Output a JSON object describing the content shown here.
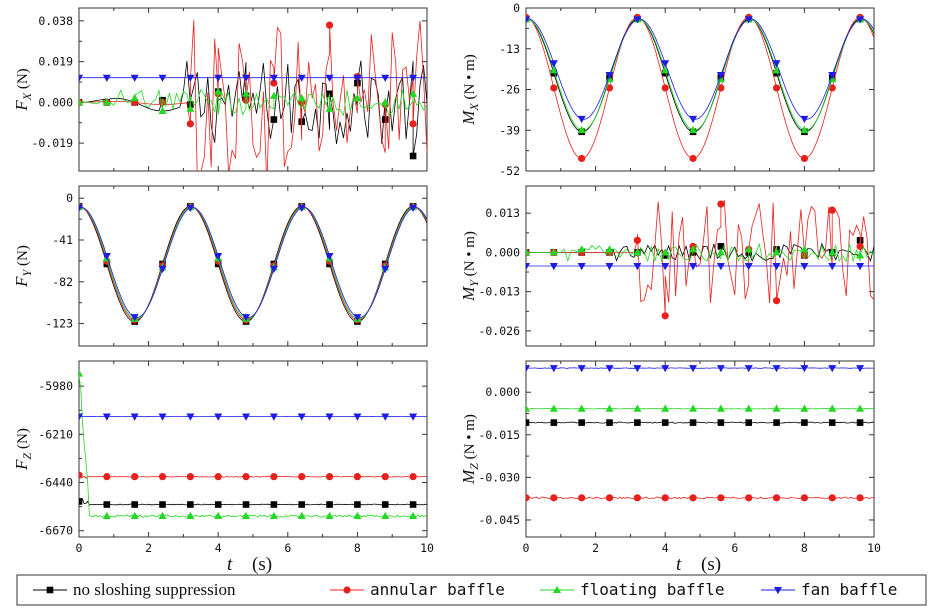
{
  "legend": [
    {
      "label": "no sloshing suppression",
      "color": "#000000",
      "marker": "square"
    },
    {
      "label": "annular baffle",
      "color": "#e8201c",
      "marker": "circle"
    },
    {
      "label": "floating baffle",
      "color": "#22d822",
      "marker": "triangle-up"
    },
    {
      "label": "fan baffle",
      "color": "#1c1ce6",
      "marker": "triangle-down"
    }
  ],
  "xaxis": {
    "label_main": "t",
    "label_unit": "(s)",
    "ticks": [
      "0",
      "2",
      "4",
      "6",
      "8",
      "10"
    ]
  },
  "chart_data": [
    {
      "type": "line",
      "id": "Fx",
      "ylabel": {
        "main": "F",
        "sub": "X",
        "unit": "(N)"
      },
      "xlim": [
        0,
        10
      ],
      "ylim": [
        -0.032,
        0.044
      ],
      "yticks": [
        0.038,
        0.019,
        0.0,
        -0.019
      ],
      "ytick_labels": [
        "0.038",
        "0.019",
        "0.000",
        "-0.019"
      ],
      "series": [
        {
          "name": "no sloshing suppression",
          "base": 0.0,
          "amp": 0.004,
          "period": 3.2,
          "noise_start": 3.0,
          "noise_amp": 0.02,
          "markers": [
            [
              0,
              0.0
            ],
            [
              0.8,
              0.0
            ],
            [
              1.6,
              0.0
            ],
            [
              2.4,
              0.001
            ],
            [
              3.2,
              -0.001
            ],
            [
              4.0,
              0.005
            ],
            [
              4.8,
              0.003
            ],
            [
              5.6,
              -0.008
            ],
            [
              6.4,
              -0.009
            ],
            [
              7.2,
              0.004
            ],
            [
              8.0,
              0.009
            ],
            [
              8.8,
              -0.008
            ],
            [
              9.6,
              -0.025
            ]
          ]
        },
        {
          "name": "annular baffle",
          "base": 0.0,
          "amp": 0.001,
          "period": 3.2,
          "noise_start": 3.2,
          "noise_amp": 0.04,
          "markers": [
            [
              0,
              0.0
            ],
            [
              0.8,
              0.0
            ],
            [
              1.6,
              0.0
            ],
            [
              2.4,
              0.0
            ],
            [
              3.2,
              -0.01
            ],
            [
              4.0,
              0.004
            ],
            [
              4.8,
              0.001
            ],
            [
              5.6,
              0.009
            ],
            [
              6.4,
              0.0
            ],
            [
              7.2,
              0.036
            ],
            [
              8.0,
              0.012
            ],
            [
              8.8,
              -0.001
            ],
            [
              9.6,
              -0.01
            ]
          ]
        },
        {
          "name": "floating baffle",
          "base": 0.0,
          "amp": 0.003,
          "period": 0.6,
          "noise_start": 1.0,
          "noise_amp": 0.006,
          "markers": [
            [
              0,
              0.0
            ],
            [
              0.8,
              0.0
            ],
            [
              1.6,
              0.002
            ],
            [
              2.4,
              -0.004
            ],
            [
              3.2,
              -0.003
            ],
            [
              4.0,
              0.005
            ],
            [
              4.8,
              0.004
            ],
            [
              5.6,
              0.003
            ],
            [
              6.4,
              0.002
            ],
            [
              7.2,
              -0.003
            ],
            [
              8.0,
              0.002
            ],
            [
              8.8,
              0.0
            ],
            [
              9.6,
              0.004
            ]
          ]
        },
        {
          "name": "fan baffle",
          "base": 0.0115,
          "amp": 0.0,
          "period": 3.2,
          "noise_start": 99,
          "noise_amp": 0.0,
          "markers": [
            [
              0,
              0.0115
            ],
            [
              0.8,
              0.0115
            ],
            [
              1.6,
              0.0115
            ],
            [
              2.4,
              0.0115
            ],
            [
              3.2,
              0.0115
            ],
            [
              4.0,
              0.0115
            ],
            [
              4.8,
              0.0115
            ],
            [
              5.6,
              0.0115
            ],
            [
              6.4,
              0.0115
            ],
            [
              7.2,
              0.0115
            ],
            [
              8.0,
              0.0115
            ],
            [
              8.8,
              0.0115
            ],
            [
              9.6,
              0.0115
            ]
          ]
        }
      ]
    },
    {
      "type": "line",
      "id": "Mx",
      "ylabel": {
        "main": "M",
        "sub": "X",
        "unit": "(N • m)"
      },
      "xlim": [
        0,
        10
      ],
      "ylim": [
        -52,
        0
      ],
      "yticks": [
        0,
        -13,
        -26,
        -39,
        -52
      ],
      "ytick_labels": [
        "0",
        "-13",
        "-26",
        "-39",
        "-52"
      ],
      "series": [
        {
          "name": "no sloshing suppression",
          "wave": {
            "mean": -21.5,
            "amp": 18.0,
            "period": 3.2,
            "phase": 0.02
          }
        },
        {
          "name": "annular baffle",
          "wave": {
            "mean": -25.5,
            "amp": 22.5,
            "period": 3.2,
            "phase": 0.0
          }
        },
        {
          "name": "floating baffle",
          "wave": {
            "mean": -21.3,
            "amp": 17.7,
            "period": 3.2,
            "phase": 0.04
          }
        },
        {
          "name": "fan baffle",
          "wave": {
            "mean": -19.5,
            "amp": 16.0,
            "period": 3.2,
            "phase": 0.06
          }
        }
      ]
    },
    {
      "type": "line",
      "id": "Fy",
      "ylabel": {
        "main": "F",
        "sub": "Y",
        "unit": "(N)"
      },
      "xlim": [
        0,
        10
      ],
      "ylim": [
        -145,
        12
      ],
      "yticks": [
        0,
        -41,
        -82,
        -123
      ],
      "ytick_labels": [
        "0",
        "-41",
        "-82",
        "-123"
      ],
      "series": [
        {
          "name": "no sloshing suppression",
          "wave": {
            "mean": -64.5,
            "amp": 56.5,
            "period": 3.2,
            "phase": 0.0
          }
        },
        {
          "name": "annular baffle",
          "wave": {
            "mean": -64.0,
            "amp": 55.5,
            "period": 3.2,
            "phase": 0.02
          }
        },
        {
          "name": "floating baffle",
          "wave": {
            "mean": -63.5,
            "amp": 55.0,
            "period": 3.2,
            "phase": 0.04
          }
        },
        {
          "name": "fan baffle",
          "wave": {
            "mean": -63.0,
            "amp": 54.0,
            "period": 3.2,
            "phase": 0.06
          }
        }
      ]
    },
    {
      "type": "line",
      "id": "My",
      "ylabel": {
        "main": "M",
        "sub": "Y",
        "unit": "(N • m)"
      },
      "xlim": [
        0,
        10
      ],
      "ylim": [
        -0.031,
        0.022
      ],
      "yticks": [
        0.013,
        0.0,
        -0.013,
        -0.026
      ],
      "ytick_labels": [
        "0.013",
        "0.000",
        "-0.013",
        "-0.026"
      ],
      "series": [
        {
          "name": "no sloshing suppression",
          "base": 0.0,
          "amp": 0.0,
          "period": 1,
          "noise_start": 2.5,
          "noise_amp": 0.003,
          "markers": [
            [
              0,
              0.0
            ],
            [
              0.8,
              0.0
            ],
            [
              1.6,
              0.0
            ],
            [
              2.4,
              0.0
            ],
            [
              3.2,
              0.0
            ],
            [
              4.0,
              -0.001
            ],
            [
              4.8,
              0.0
            ],
            [
              5.6,
              0.002
            ],
            [
              6.4,
              0.0
            ],
            [
              7.2,
              0.001
            ],
            [
              8.0,
              -0.001
            ],
            [
              8.8,
              0.0
            ],
            [
              9.6,
              0.004
            ]
          ]
        },
        {
          "name": "annular baffle",
          "base": 0.0,
          "amp": 0.0,
          "period": 1,
          "noise_start": 3.2,
          "noise_amp": 0.018,
          "markers": [
            [
              0,
              0.0
            ],
            [
              0.8,
              0.0
            ],
            [
              1.6,
              0.0
            ],
            [
              2.4,
              0.0
            ],
            [
              3.2,
              0.004
            ],
            [
              4.0,
              -0.021
            ],
            [
              4.8,
              0.002
            ],
            [
              5.6,
              0.016
            ],
            [
              6.4,
              0.001
            ],
            [
              7.2,
              -0.016
            ],
            [
              8.0,
              -0.001
            ],
            [
              8.8,
              0.014
            ],
            [
              9.6,
              0.002
            ]
          ]
        },
        {
          "name": "floating baffle",
          "base": 0.0,
          "amp": 0.0,
          "period": 1,
          "noise_start": 1.0,
          "noise_amp": 0.003,
          "markers": [
            [
              0,
              0.0
            ],
            [
              0.8,
              0.0
            ],
            [
              1.6,
              0.001
            ],
            [
              2.4,
              0.001
            ],
            [
              3.2,
              0.0
            ],
            [
              4.0,
              0.0
            ],
            [
              4.8,
              0.001
            ],
            [
              5.6,
              0.0
            ],
            [
              6.4,
              0.001
            ],
            [
              7.2,
              0.0
            ],
            [
              8.0,
              0.001
            ],
            [
              8.8,
              0.0
            ],
            [
              9.6,
              -0.001
            ]
          ]
        },
        {
          "name": "fan baffle",
          "base": -0.0045,
          "amp": 0.0,
          "period": 1,
          "noise_start": 99,
          "noise_amp": 0.0,
          "markers": [
            [
              0,
              -0.0045
            ],
            [
              0.8,
              -0.0045
            ],
            [
              1.6,
              -0.0045
            ],
            [
              2.4,
              -0.0045
            ],
            [
              3.2,
              -0.0045
            ],
            [
              4.0,
              -0.0045
            ],
            [
              4.8,
              -0.0045
            ],
            [
              5.6,
              -0.0045
            ],
            [
              6.4,
              -0.0045
            ],
            [
              7.2,
              -0.0045
            ],
            [
              8.0,
              -0.0045
            ],
            [
              8.8,
              -0.0045
            ],
            [
              9.6,
              -0.0045
            ]
          ]
        }
      ]
    },
    {
      "type": "line",
      "id": "Fz",
      "ylabel": {
        "main": "F",
        "sub": "Z",
        "unit": "(N)"
      },
      "xlim": [
        0,
        10
      ],
      "ylim": [
        -6700,
        -5860
      ],
      "yticks": [
        -5980,
        -6210,
        -6440,
        -6670
      ],
      "ytick_labels": [
        "-5980",
        "-6210",
        "-6440",
        "-6670"
      ],
      "series": [
        {
          "name": "no sloshing suppression",
          "flat": {
            "value": -6545,
            "start": -6530,
            "noise": 2
          }
        },
        {
          "name": "annular baffle",
          "flat": {
            "value": -6412,
            "start": -6405,
            "noise": 2
          }
        },
        {
          "name": "floating baffle",
          "flat": {
            "value": -6600,
            "start": -5920,
            "noise": 6
          }
        },
        {
          "name": "fan baffle",
          "flat": {
            "value": -6125,
            "start": -6125,
            "noise": 1
          }
        }
      ]
    },
    {
      "type": "line",
      "id": "Mz",
      "ylabel": {
        "main": "M",
        "sub": "Z",
        "unit": "(N • m)"
      },
      "xlim": [
        0,
        10
      ],
      "ylim": [
        -0.051,
        0.011
      ],
      "yticks": [
        0.0,
        -0.015,
        -0.03,
        -0.045
      ],
      "ytick_labels": [
        "0.000",
        "-0.015",
        "-0.030",
        "-0.045"
      ],
      "series": [
        {
          "name": "no sloshing suppression",
          "flat": {
            "value": -0.0107,
            "start": -0.0107,
            "noise": 0.0002
          }
        },
        {
          "name": "annular baffle",
          "flat": {
            "value": -0.0372,
            "start": -0.0372,
            "noise": 0.0003
          }
        },
        {
          "name": "floating baffle",
          "flat": {
            "value": -0.0058,
            "start": -0.0058,
            "noise": 0.0001
          }
        },
        {
          "name": "fan baffle",
          "flat": {
            "value": 0.0085,
            "start": 0.0085,
            "noise": 0.0001
          }
        }
      ]
    }
  ]
}
